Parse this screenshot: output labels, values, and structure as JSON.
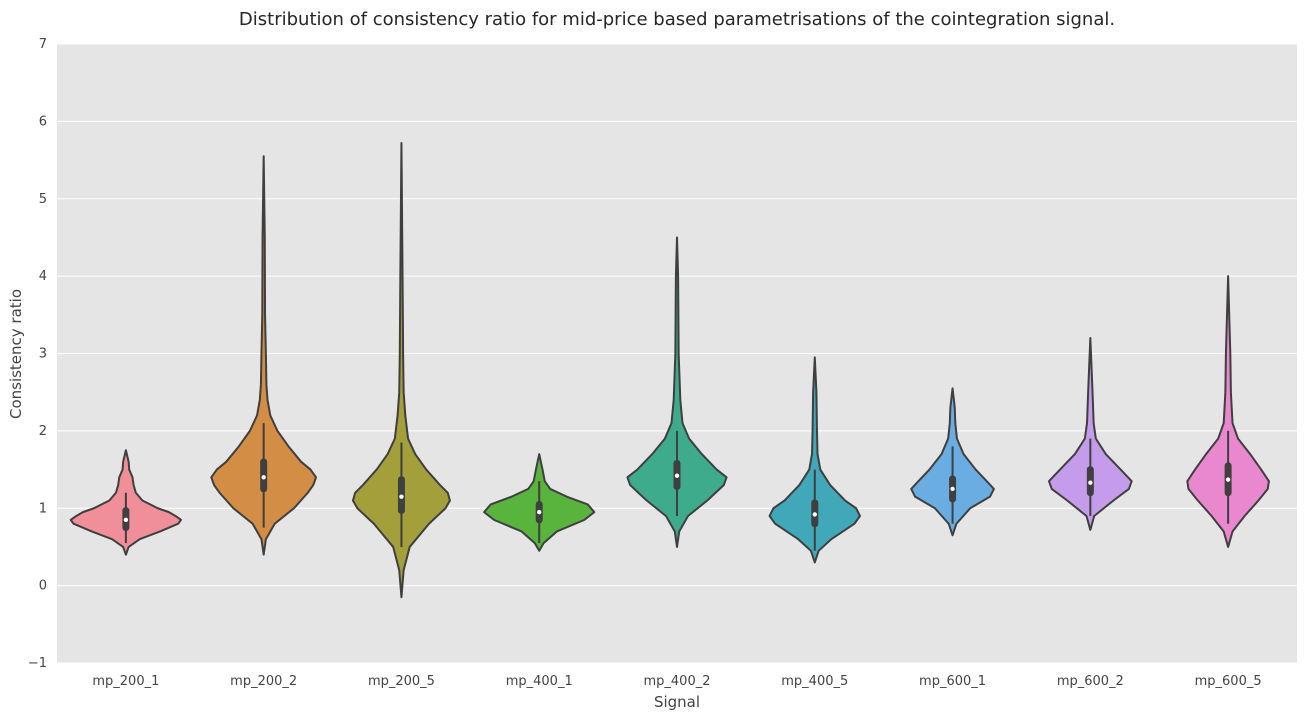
{
  "chart_data": {
    "type": "violin",
    "title": "Distribution of consistency ratio for mid-price based parametrisations of the cointegration signal.",
    "xlabel": "Signal",
    "ylabel": "Consistency ratio",
    "ylim": [
      -1,
      7
    ],
    "yticks": [
      "−1",
      "0",
      "1",
      "2",
      "3",
      "4",
      "5",
      "6",
      "7"
    ],
    "grid": true,
    "categories": [
      "mp_200_1",
      "mp_200_2",
      "mp_200_5",
      "mp_400_1",
      "mp_400_2",
      "mp_400_5",
      "mp_600_1",
      "mp_600_2",
      "mp_600_5"
    ],
    "series": [
      {
        "category": "mp_200_1",
        "color": "#f08f99",
        "min": 0.4,
        "max": 1.75,
        "q1": 0.75,
        "median": 0.85,
        "q3": 0.97,
        "whisker_low": 0.55,
        "whisker_high": 1.2,
        "profile": [
          [
            0.4,
            0
          ],
          [
            0.5,
            0.05
          ],
          [
            0.6,
            0.25
          ],
          [
            0.7,
            0.62
          ],
          [
            0.8,
            0.95
          ],
          [
            0.85,
            1.0
          ],
          [
            0.9,
            0.9
          ],
          [
            0.95,
            0.78
          ],
          [
            1.0,
            0.58
          ],
          [
            1.1,
            0.3
          ],
          [
            1.2,
            0.18
          ],
          [
            1.3,
            0.14
          ],
          [
            1.4,
            0.12
          ],
          [
            1.5,
            0.06
          ],
          [
            1.6,
            0.05
          ],
          [
            1.75,
            0
          ]
        ]
      },
      {
        "category": "mp_200_2",
        "color": "#d48d44",
        "min": 0.4,
        "max": 5.55,
        "q1": 1.25,
        "median": 1.4,
        "q3": 1.6,
        "whisker_low": 0.75,
        "whisker_high": 2.1,
        "profile": [
          [
            0.4,
            0
          ],
          [
            0.6,
            0.04
          ],
          [
            0.8,
            0.2
          ],
          [
            1.0,
            0.55
          ],
          [
            1.2,
            0.8
          ],
          [
            1.3,
            0.9
          ],
          [
            1.4,
            0.95
          ],
          [
            1.5,
            0.85
          ],
          [
            1.6,
            0.68
          ],
          [
            1.8,
            0.45
          ],
          [
            2.0,
            0.25
          ],
          [
            2.2,
            0.12
          ],
          [
            2.4,
            0.07
          ],
          [
            2.6,
            0.05
          ],
          [
            3.0,
            0.04
          ],
          [
            3.5,
            0.025
          ],
          [
            4.5,
            0.02
          ],
          [
            5.55,
            0
          ]
        ]
      },
      {
        "category": "mp_200_5",
        "color": "#a3a03c",
        "min": -0.15,
        "max": 5.72,
        "q1": 0.97,
        "median": 1.15,
        "q3": 1.37,
        "whisker_low": 0.5,
        "whisker_high": 1.85,
        "profile": [
          [
            -0.15,
            0
          ],
          [
            0.2,
            0.04
          ],
          [
            0.5,
            0.15
          ],
          [
            0.8,
            0.5
          ],
          [
            1.0,
            0.8
          ],
          [
            1.1,
            0.88
          ],
          [
            1.2,
            0.84
          ],
          [
            1.3,
            0.7
          ],
          [
            1.5,
            0.45
          ],
          [
            1.7,
            0.25
          ],
          [
            1.9,
            0.12
          ],
          [
            2.2,
            0.07
          ],
          [
            2.5,
            0.04
          ],
          [
            3.0,
            0.03
          ],
          [
            4.0,
            0.02
          ],
          [
            5.72,
            0
          ]
        ]
      },
      {
        "category": "mp_400_1",
        "color": "#58b43c",
        "min": 0.45,
        "max": 1.7,
        "q1": 0.85,
        "median": 0.95,
        "q3": 1.05,
        "whisker_low": 0.55,
        "whisker_high": 1.35,
        "profile": [
          [
            0.45,
            0
          ],
          [
            0.55,
            0.08
          ],
          [
            0.7,
            0.32
          ],
          [
            0.85,
            0.82
          ],
          [
            0.95,
            1.0
          ],
          [
            1.05,
            0.88
          ],
          [
            1.15,
            0.5
          ],
          [
            1.25,
            0.2
          ],
          [
            1.35,
            0.1
          ],
          [
            1.5,
            0.06
          ],
          [
            1.7,
            0
          ]
        ]
      },
      {
        "category": "mp_400_2",
        "color": "#3fab8d",
        "min": 0.5,
        "max": 4.5,
        "q1": 1.28,
        "median": 1.42,
        "q3": 1.58,
        "whisker_low": 0.9,
        "whisker_high": 2.0,
        "profile": [
          [
            0.5,
            0
          ],
          [
            0.7,
            0.04
          ],
          [
            0.9,
            0.2
          ],
          [
            1.1,
            0.55
          ],
          [
            1.3,
            0.85
          ],
          [
            1.4,
            0.9
          ],
          [
            1.5,
            0.72
          ],
          [
            1.7,
            0.45
          ],
          [
            1.9,
            0.22
          ],
          [
            2.1,
            0.1
          ],
          [
            2.4,
            0.06
          ],
          [
            3.0,
            0.03
          ],
          [
            4.0,
            0.02
          ],
          [
            4.5,
            0
          ]
        ]
      },
      {
        "category": "mp_400_5",
        "color": "#40a8b8",
        "min": 0.3,
        "max": 2.95,
        "q1": 0.8,
        "median": 0.92,
        "q3": 1.07,
        "whisker_low": 0.45,
        "whisker_high": 1.5,
        "profile": [
          [
            0.3,
            0
          ],
          [
            0.45,
            0.07
          ],
          [
            0.6,
            0.3
          ],
          [
            0.8,
            0.72
          ],
          [
            0.9,
            0.82
          ],
          [
            1.0,
            0.75
          ],
          [
            1.1,
            0.55
          ],
          [
            1.3,
            0.28
          ],
          [
            1.5,
            0.1
          ],
          [
            1.7,
            0.05
          ],
          [
            2.0,
            0.04
          ],
          [
            2.5,
            0.03
          ],
          [
            2.95,
            0
          ]
        ]
      },
      {
        "category": "mp_600_1",
        "color": "#6aade2",
        "min": 0.65,
        "max": 2.55,
        "q1": 1.12,
        "median": 1.25,
        "q3": 1.38,
        "whisker_low": 0.8,
        "whisker_high": 1.8,
        "profile": [
          [
            0.65,
            0
          ],
          [
            0.8,
            0.07
          ],
          [
            1.0,
            0.32
          ],
          [
            1.15,
            0.68
          ],
          [
            1.25,
            0.75
          ],
          [
            1.35,
            0.62
          ],
          [
            1.5,
            0.42
          ],
          [
            1.7,
            0.2
          ],
          [
            1.9,
            0.08
          ],
          [
            2.1,
            0.05
          ],
          [
            2.3,
            0.04
          ],
          [
            2.55,
            0
          ]
        ]
      },
      {
        "category": "mp_600_2",
        "color": "#c59ceb",
        "min": 0.72,
        "max": 3.2,
        "q1": 1.2,
        "median": 1.33,
        "q3": 1.5,
        "whisker_low": 0.9,
        "whisker_high": 1.9,
        "profile": [
          [
            0.72,
            0
          ],
          [
            0.9,
            0.07
          ],
          [
            1.1,
            0.42
          ],
          [
            1.25,
            0.7
          ],
          [
            1.35,
            0.75
          ],
          [
            1.5,
            0.55
          ],
          [
            1.7,
            0.28
          ],
          [
            1.9,
            0.1
          ],
          [
            2.1,
            0.06
          ],
          [
            2.5,
            0.04
          ],
          [
            3.2,
            0
          ]
        ]
      },
      {
        "category": "mp_600_5",
        "color": "#ea88cf",
        "min": 0.5,
        "max": 4.0,
        "q1": 1.2,
        "median": 1.37,
        "q3": 1.55,
        "whisker_low": 0.8,
        "whisker_high": 2.0,
        "profile": [
          [
            0.5,
            0
          ],
          [
            0.7,
            0.08
          ],
          [
            0.9,
            0.3
          ],
          [
            1.1,
            0.55
          ],
          [
            1.25,
            0.72
          ],
          [
            1.35,
            0.74
          ],
          [
            1.5,
            0.6
          ],
          [
            1.7,
            0.4
          ],
          [
            1.9,
            0.18
          ],
          [
            2.1,
            0.08
          ],
          [
            2.5,
            0.05
          ],
          [
            3.0,
            0.04
          ],
          [
            4.0,
            0
          ]
        ]
      }
    ]
  }
}
